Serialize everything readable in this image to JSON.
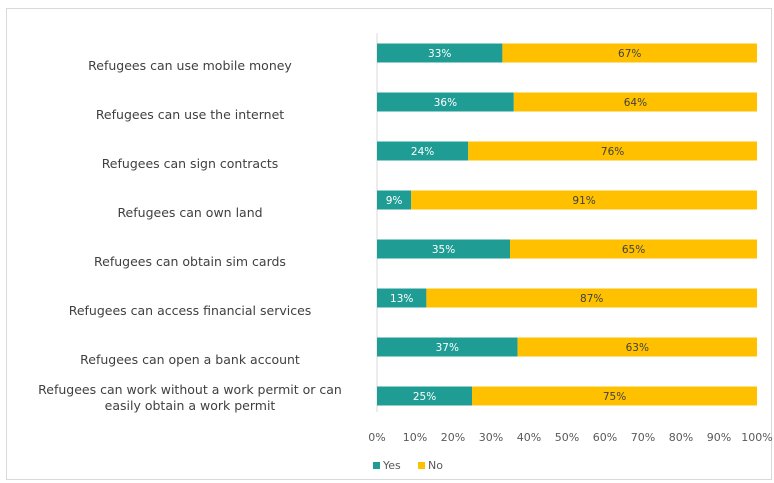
{
  "chart_data": {
    "type": "bar",
    "orientation": "horizontal",
    "stacked": "percent",
    "categories": [
      "Refugees can use mobile money",
      "Refugees can use the internet",
      "Refugees can sign contracts",
      "Refugees can own land",
      "Refugees can obtain sim cards",
      "Refugees can access financial services",
      "Refugees can open a bank account",
      "Refugees can work without a work permit or can easily obtain a work permit"
    ],
    "series": [
      {
        "name": "Yes",
        "color": "#1f9c94",
        "values": [
          33,
          36,
          24,
          9,
          35,
          13,
          37,
          25
        ]
      },
      {
        "name": "No",
        "color": "#ffc000",
        "values": [
          67,
          64,
          76,
          91,
          65,
          87,
          63,
          75
        ]
      }
    ],
    "xlim": [
      0,
      100
    ],
    "xticks": [
      "0%",
      "10%",
      "20%",
      "30%",
      "40%",
      "50%",
      "60%",
      "70%",
      "80%",
      "90%",
      "100%"
    ],
    "value_format": "percent",
    "grid": false,
    "legend": "bottom-center"
  }
}
